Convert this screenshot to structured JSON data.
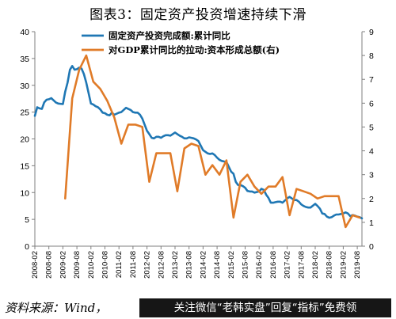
{
  "title": "图表3：固定资产投资增速持续下滑",
  "source": "资料来源：Wind，",
  "banner": "关注微信“老韩实盘”回复“指标”免费领",
  "chart_data": {
    "type": "line",
    "title": "图表3：固定资产投资增速持续下滑",
    "xlabel": "",
    "ylabel": "",
    "ylim_left": [
      0,
      40
    ],
    "ylim_right": [
      0,
      9
    ],
    "left_ticks": [
      "0",
      "5",
      "10",
      "15",
      "20",
      "25",
      "30",
      "35",
      "40"
    ],
    "right_ticks": [
      "0",
      "1",
      "2",
      "3",
      "4",
      "5",
      "6",
      "7",
      "8",
      "9"
    ],
    "x_ticks": [
      "2008-02",
      "2008-08",
      "2009-02",
      "2009-08",
      "2010-02",
      "2010-08",
      "2011-02",
      "2011-08",
      "2012-02",
      "2012-08",
      "2013-02",
      "2013-08",
      "2014-02",
      "2014-08",
      "2015-02",
      "2015-08",
      "2016-02",
      "2016-08",
      "2017-02",
      "2017-08",
      "2018-02",
      "2018-08",
      "2019-02",
      "2019-08"
    ],
    "grid": false,
    "legend_position": "top",
    "series": [
      {
        "name": "固定资产投资完成额:累计同比",
        "axis": "left",
        "color": "#1f77b4",
        "x": [
          "2008-02",
          "2008-03",
          "2008-04",
          "2008-05",
          "2008-06",
          "2008-07",
          "2008-08",
          "2008-09",
          "2008-10",
          "2008-11",
          "2008-12",
          "2009-02",
          "2009-03",
          "2009-04",
          "2009-05",
          "2009-06",
          "2009-07",
          "2009-08",
          "2009-09",
          "2009-10",
          "2009-11",
          "2009-12",
          "2010-02",
          "2010-03",
          "2010-04",
          "2010-05",
          "2010-06",
          "2010-07",
          "2010-08",
          "2010-09",
          "2010-10",
          "2010-11",
          "2010-12",
          "2011-02",
          "2011-03",
          "2011-04",
          "2011-05",
          "2011-06",
          "2011-07",
          "2011-08",
          "2011-09",
          "2011-10",
          "2011-11",
          "2011-12",
          "2012-02",
          "2012-03",
          "2012-04",
          "2012-05",
          "2012-06",
          "2012-07",
          "2012-08",
          "2012-09",
          "2012-10",
          "2012-11",
          "2012-12",
          "2013-02",
          "2013-03",
          "2013-04",
          "2013-05",
          "2013-06",
          "2013-07",
          "2013-08",
          "2013-09",
          "2013-10",
          "2013-11",
          "2013-12",
          "2014-02",
          "2014-03",
          "2014-04",
          "2014-05",
          "2014-06",
          "2014-07",
          "2014-08",
          "2014-09",
          "2014-10",
          "2014-11",
          "2014-12",
          "2015-02",
          "2015-03",
          "2015-04",
          "2015-05",
          "2015-06",
          "2015-07",
          "2015-08",
          "2015-09",
          "2015-10",
          "2015-11",
          "2015-12",
          "2016-02",
          "2016-03",
          "2016-04",
          "2016-05",
          "2016-06",
          "2016-07",
          "2016-08",
          "2016-09",
          "2016-10",
          "2016-11",
          "2016-12",
          "2017-02",
          "2017-03",
          "2017-04",
          "2017-05",
          "2017-06",
          "2017-07",
          "2017-08",
          "2017-09",
          "2017-10",
          "2017-11",
          "2017-12",
          "2018-02",
          "2018-03",
          "2018-04",
          "2018-05",
          "2018-06",
          "2018-07",
          "2018-08",
          "2018-09",
          "2018-10",
          "2018-11",
          "2018-12",
          "2019-02",
          "2019-03",
          "2019-04",
          "2019-05",
          "2019-06",
          "2019-07",
          "2019-08",
          "2019-09",
          "2019-10"
        ],
        "values": [
          24.3,
          25.9,
          25.7,
          25.6,
          26.8,
          27.3,
          27.4,
          27.6,
          27.2,
          26.8,
          26.6,
          26.5,
          28.8,
          30.5,
          32.9,
          33.6,
          32.9,
          33.0,
          33.3,
          33.1,
          32.1,
          30.5,
          26.6,
          26.4,
          26.1,
          25.9,
          25.5,
          24.9,
          24.8,
          24.5,
          24.4,
          24.9,
          24.5,
          24.9,
          25.0,
          25.4,
          25.8,
          25.6,
          25.4,
          25.0,
          24.9,
          24.9,
          24.5,
          23.8,
          21.5,
          20.9,
          20.2,
          20.1,
          20.4,
          20.4,
          20.2,
          20.5,
          20.7,
          20.7,
          20.6,
          21.2,
          20.9,
          20.6,
          20.4,
          20.1,
          20.1,
          20.3,
          20.2,
          20.1,
          19.9,
          19.6,
          17.9,
          17.6,
          17.3,
          17.2,
          17.3,
          17.0,
          16.5,
          16.1,
          15.9,
          15.8,
          15.7,
          13.9,
          13.5,
          12.0,
          11.4,
          11.4,
          11.2,
          10.9,
          10.3,
          10.2,
          10.2,
          10.0,
          10.2,
          10.7,
          10.5,
          9.6,
          9.0,
          8.1,
          8.1,
          8.2,
          8.3,
          8.3,
          8.1,
          8.9,
          9.2,
          8.9,
          8.6,
          8.6,
          8.3,
          7.8,
          7.5,
          7.3,
          7.2,
          7.2,
          7.9,
          7.5,
          7.0,
          6.1,
          6.0,
          5.5,
          5.3,
          5.4,
          5.7,
          5.9,
          5.9,
          6.1,
          6.3,
          6.1,
          5.6,
          5.8,
          5.7,
          5.5,
          5.4,
          5.2
        ]
      },
      {
        "name": "对GDP累计同比的拉动:资本形成总额(右)",
        "axis": "right",
        "color": "#e07b28",
        "x": [
          "2009-03",
          "2009-06",
          "2009-09",
          "2009-12",
          "2010-03",
          "2010-06",
          "2010-09",
          "2010-12",
          "2011-03",
          "2011-06",
          "2011-09",
          "2011-12",
          "2012-03",
          "2012-06",
          "2012-09",
          "2012-12",
          "2013-03",
          "2013-06",
          "2013-09",
          "2013-12",
          "2014-03",
          "2014-06",
          "2014-09",
          "2014-12",
          "2015-03",
          "2015-06",
          "2015-09",
          "2015-12",
          "2016-03",
          "2016-06",
          "2016-09",
          "2016-12",
          "2017-03",
          "2017-06",
          "2017-09",
          "2017-12",
          "2018-03",
          "2018-06",
          "2018-09",
          "2018-12",
          "2019-03",
          "2019-06",
          "2019-09"
        ],
        "values": [
          2.0,
          6.2,
          7.4,
          8.0,
          6.9,
          6.6,
          6.1,
          5.4,
          4.3,
          5.1,
          5.1,
          5.0,
          2.7,
          3.9,
          3.9,
          3.9,
          2.3,
          4.1,
          4.3,
          4.2,
          3.0,
          3.4,
          3.0,
          3.6,
          1.2,
          2.7,
          3.0,
          2.5,
          2.2,
          2.5,
          2.5,
          2.9,
          1.3,
          2.4,
          2.3,
          2.2,
          2.0,
          2.1,
          2.1,
          2.1,
          0.8,
          1.3,
          1.2
        ]
      }
    ]
  }
}
